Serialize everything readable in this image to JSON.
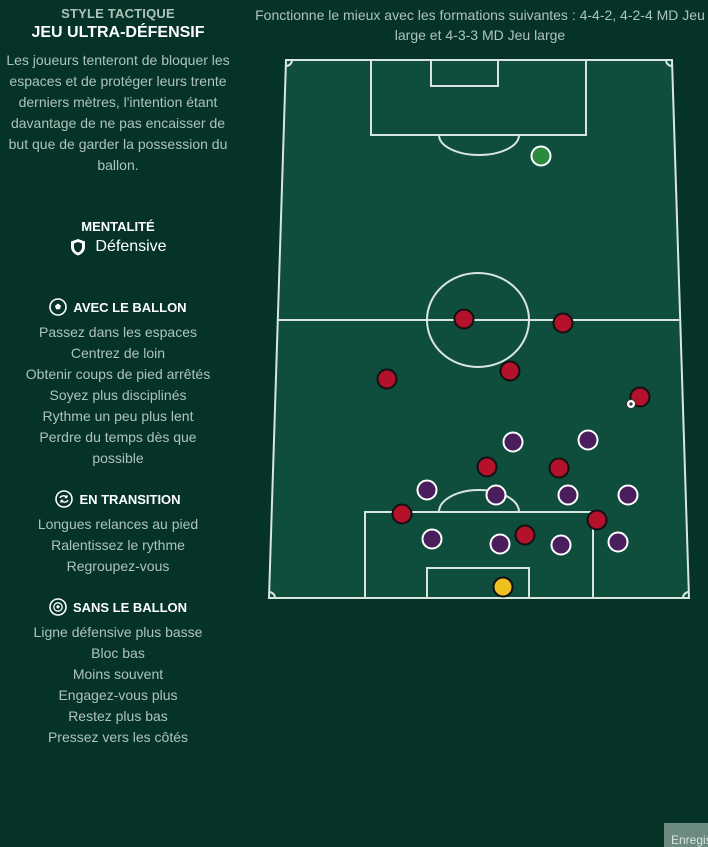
{
  "tactic": {
    "kicker": "STYLE TACTIQUE",
    "name": "JEU ULTRA-DÉFENSIF",
    "description": "Les joueurs tenteront de bloquer les espaces et de protéger leurs trente derniers mètres, l'intention étant davantage de ne pas encaisser de but que de garder la possession du ballon."
  },
  "mentality": {
    "label": "MENTALITÉ",
    "value": "Défensive",
    "icon": "shield-icon"
  },
  "in_possession": {
    "label": "AVEC LE BALLON",
    "icon": "ball-icon",
    "items": [
      "Passez dans les espaces",
      "Centrez de loin",
      "Obtenir coups de pied arrêtés",
      "Soyez plus disciplinés",
      "Rythme un peu plus lent",
      "Perdre du temps dès que possible"
    ]
  },
  "in_transition": {
    "label": "EN TRANSITION",
    "icon": "transition-icon",
    "items": [
      "Longues relances au pied",
      "Ralentissez le rythme",
      "Regroupez-vous"
    ]
  },
  "out_of_possession": {
    "label": "SANS LE BALLON",
    "icon": "no-ball-icon",
    "items": [
      "Ligne défensive plus basse",
      "Bloc bas",
      "Moins souvent",
      "Engagez-vous plus",
      "Restez plus bas",
      "Pressez vers les côtés"
    ]
  },
  "formations_text": "Fonctionne le mieux avec les formations suivantes : 4-4-2, 4-2-4 MD Jeu large et 4-3-3 MD Jeu large",
  "colors": {
    "background": "#053328",
    "pitch": "#0f4d3d",
    "opponent": "#b4122a",
    "own_team": "#4a1d5c",
    "opponent_keeper": "#2a8a3d",
    "own_keeper": "#f0c020"
  },
  "save_button": {
    "label": "Enregistrer"
  }
}
